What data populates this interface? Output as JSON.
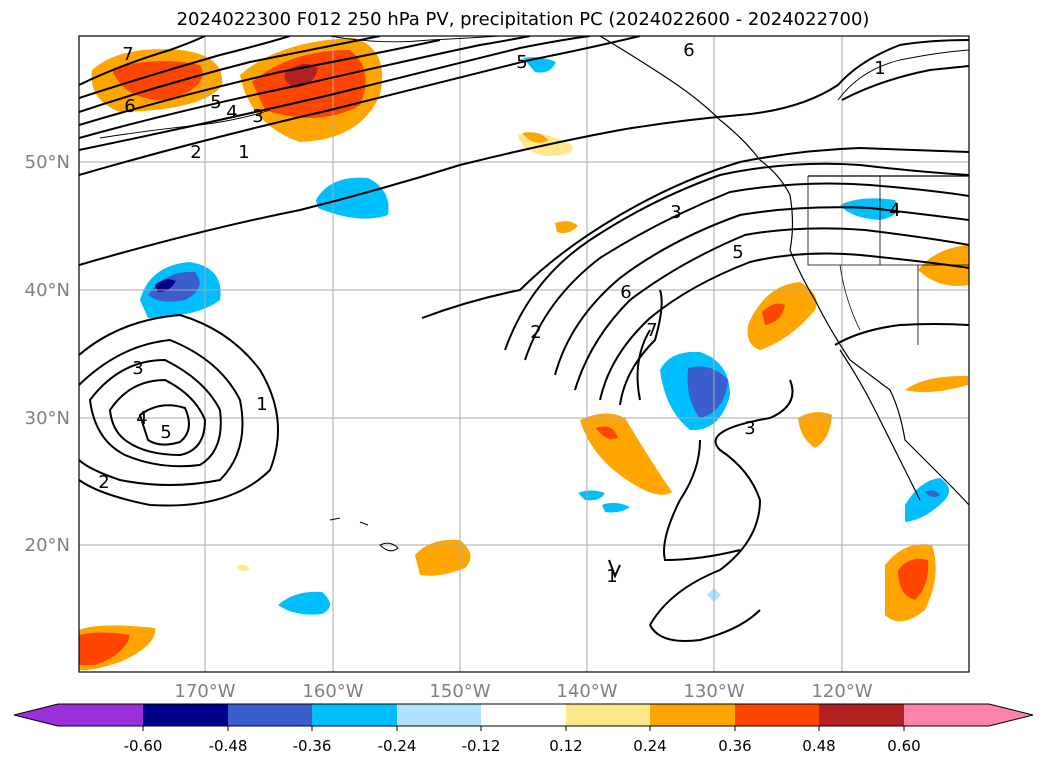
{
  "title": "2024022300 F012 250 hPa PV, precipitation PC (2024022600 - 2024022700)",
  "map": {
    "lon_labels": [
      "170°W",
      "160°W",
      "150°W",
      "140°W",
      "130°W",
      "120°W"
    ],
    "lat_labels": [
      "50°N",
      "40°N",
      "30°N",
      "20°N"
    ],
    "gridlines": true
  },
  "contour_labels": [
    "7",
    "6",
    "5",
    "4",
    "3",
    "2",
    "1",
    "5",
    "6",
    "1",
    "3",
    "6",
    "7",
    "2",
    "5",
    "4",
    "3",
    "4",
    "5",
    "1",
    "2",
    "3",
    "1"
  ],
  "colorbar": {
    "ticks": [
      "-0.60",
      "-0.48",
      "-0.36",
      "-0.24",
      "-0.12",
      "0.12",
      "0.24",
      "0.36",
      "0.48",
      "0.60"
    ],
    "colors": [
      "#9b30d9",
      "#00008b",
      "#3a5fcd",
      "#00bfff",
      "#b0e2ff",
      "#ffffff",
      "#ffe88c",
      "#ffa500",
      "#ff4500",
      "#b22222",
      "#ff82ab"
    ]
  }
}
